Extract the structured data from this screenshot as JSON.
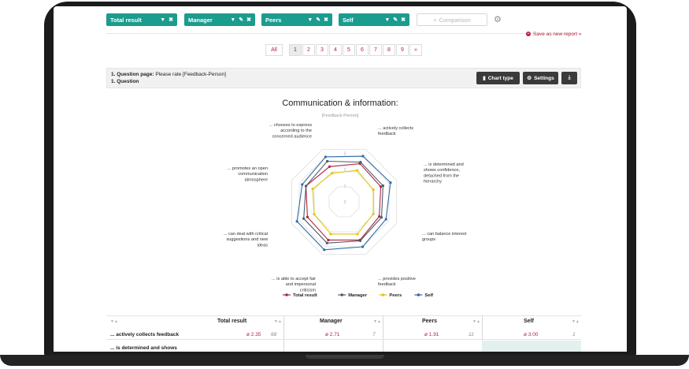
{
  "filters": [
    {
      "label": "Total result",
      "icons": [
        "chevron-down-icon",
        "close-icon"
      ]
    },
    {
      "label": "Manager",
      "icons": [
        "chevron-down-icon",
        "pencil-icon",
        "close-icon"
      ]
    },
    {
      "label": "Peers",
      "icons": [
        "chevron-down-icon",
        "pencil-icon",
        "close-icon"
      ]
    },
    {
      "label": "Self",
      "icons": [
        "chevron-down-icon",
        "pencil-icon",
        "close-icon"
      ]
    }
  ],
  "comparison": {
    "label": "Comparison"
  },
  "save_report": "Save as new report »",
  "pagination": {
    "all": "All",
    "pages": [
      "1",
      "2",
      "3",
      "4",
      "5",
      "6",
      "7",
      "8",
      "9"
    ],
    "next": "»",
    "active": "1"
  },
  "question": {
    "title_bold": "1. Question page:",
    "title_rest": " Please rate [Feedback-Person]",
    "subtitle": "1. Question"
  },
  "toolbar": {
    "chart_type": "Chart type",
    "settings": "Settings",
    "download_icon": "download-icon"
  },
  "chart_data": {
    "type": "radar",
    "title": "Communication & information:",
    "subtitle": "[Feedback-Person]",
    "axes": [
      "... actively collects feedback",
      "... is determined and shows confidence, detached from the hierarchy",
      "... can balance interest groups",
      "... provides positive feedback",
      "... is able to accept fair and impersonal criticism",
      "... can deal with critical suggestions and new ideas",
      "... promotes an open communication atmosphere",
      "... chooses to express according to the concerned audience"
    ],
    "scale_labels": [
      "0",
      "1",
      "2",
      "3"
    ],
    "range": [
      0,
      3.5
    ],
    "series": [
      {
        "name": "Total result",
        "color": "#b0243f",
        "values": [
          2.35,
          2.55,
          2.45,
          2.35,
          2.55,
          2.55,
          2.45,
          2.55
        ]
      },
      {
        "name": "Manager",
        "color": "#4c5a6b",
        "values": [
          2.71,
          2.65,
          2.6,
          2.5,
          2.6,
          2.75,
          2.7,
          2.55
        ]
      },
      {
        "name": "Peers",
        "color": "#e2c610",
        "values": [
          1.91,
          2.1,
          1.95,
          1.95,
          2.15,
          2.15,
          2.0,
          2.1
        ]
      },
      {
        "name": "Self",
        "color": "#2f6aa8",
        "values": [
          3.0,
          3.05,
          3.1,
          2.8,
          3.0,
          3.2,
          3.15,
          2.8
        ]
      }
    ]
  },
  "table": {
    "columns": [
      "Total result",
      "Manager",
      "Peers",
      "Self"
    ],
    "rows": [
      {
        "label": "... actively collects feedback",
        "values": [
          "ø 2.35",
          "ø 2.71",
          "ø 1.91",
          "ø 3.00"
        ],
        "counts": [
          "68",
          "7",
          "11",
          "1"
        ]
      },
      {
        "label": "... is determined and shows"
      }
    ]
  }
}
